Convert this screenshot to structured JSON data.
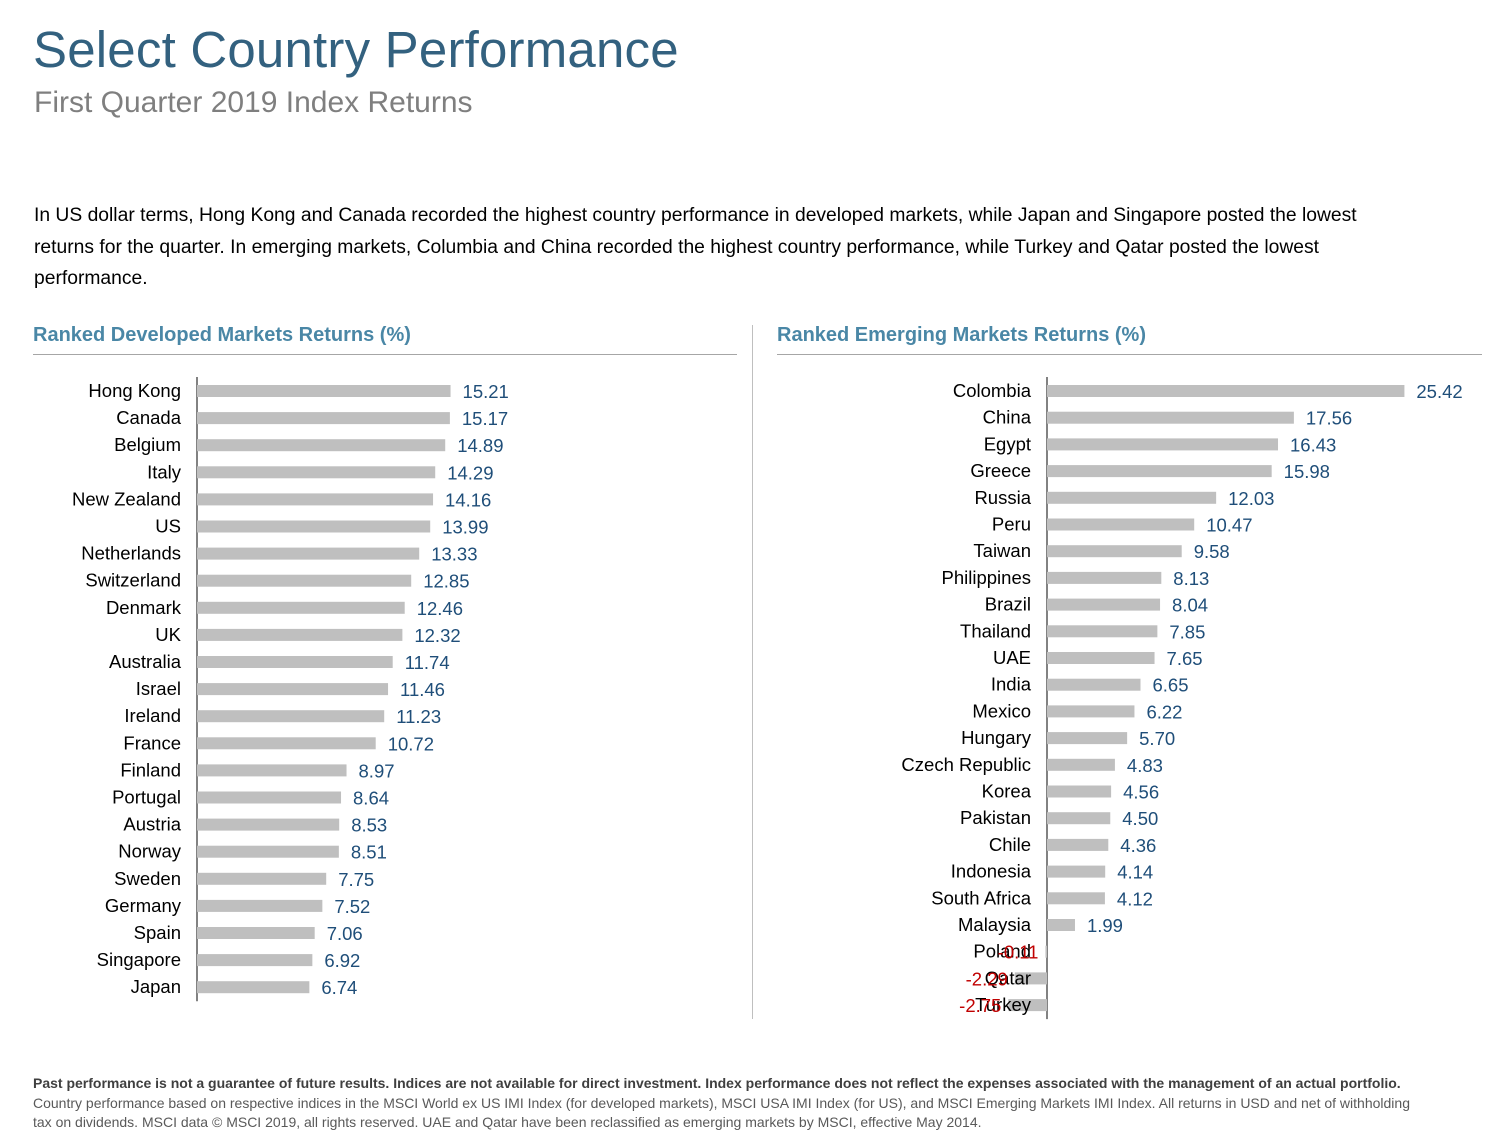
{
  "header": {
    "title": "Select Country Performance",
    "subtitle": "First Quarter 2019 Index Returns"
  },
  "intro": "In US dollar terms, Hong Kong and Canada recorded the highest country performance in developed markets, while Japan and Singapore posted the lowest returns for the quarter. In emerging markets, Columbia and China recorded the highest country performance, while Turkey and Qatar posted the lowest performance.",
  "colors": {
    "bar": "#bfbfbf",
    "positive_label": "#1f4e79",
    "negative_label": "#c00000",
    "title": "#33617f",
    "panel_title": "#4a87a6"
  },
  "chart_data": [
    {
      "type": "bar",
      "orientation": "horizontal",
      "title": "Ranked Developed Markets Returns (%)",
      "categories": [
        "Hong Kong",
        "Canada",
        "Belgium",
        "Italy",
        "New Zealand",
        "US",
        "Netherlands",
        "Switzerland",
        "Denmark",
        "UK",
        "Australia",
        "Israel",
        "Ireland",
        "France",
        "Finland",
        "Portugal",
        "Austria",
        "Norway",
        "Sweden",
        "Germany",
        "Spain",
        "Singapore",
        "Japan"
      ],
      "values": [
        15.21,
        15.17,
        14.89,
        14.29,
        14.16,
        13.99,
        13.33,
        12.85,
        12.46,
        12.32,
        11.74,
        11.46,
        11.23,
        10.72,
        8.97,
        8.64,
        8.53,
        8.51,
        7.75,
        7.52,
        7.06,
        6.92,
        6.74
      ],
      "xlim": [
        0,
        25.42
      ],
      "grid": false,
      "legend": "none"
    },
    {
      "type": "bar",
      "orientation": "horizontal",
      "title": "Ranked Emerging Markets Returns (%)",
      "categories": [
        "Colombia",
        "China",
        "Egypt",
        "Greece",
        "Russia",
        "Peru",
        "Taiwan",
        "Philippines",
        "Brazil",
        "Thailand",
        "UAE",
        "India",
        "Mexico",
        "Hungary",
        "Czech Republic",
        "Korea",
        "Pakistan",
        "Chile",
        "Indonesia",
        "South Africa",
        "Malaysia",
        "Poland",
        "Qatar",
        "Turkey"
      ],
      "values": [
        25.42,
        17.56,
        16.43,
        15.98,
        12.03,
        10.47,
        9.58,
        8.13,
        8.04,
        7.85,
        7.65,
        6.65,
        6.22,
        5.7,
        4.83,
        4.56,
        4.5,
        4.36,
        4.14,
        4.12,
        1.99,
        -0.11,
        -2.29,
        -2.75
      ],
      "xlim": [
        -2.75,
        25.42
      ],
      "grid": false,
      "legend": "none"
    }
  ],
  "footnote": {
    "bold": "Past performance is not a guarantee of future results. Indices are not available for direct investment. Index performance does not reflect the expenses associated with the management of an actual portfolio.",
    "line1": "Country performance based on respective indices in the MSCI World ex US IMI Index (for developed markets), MSCI USA IMI Index (for US), and MSCI Emerging Markets IMI Index. All returns in USD and net of withholding",
    "line2": "tax on dividends. MSCI data © MSCI 2019, all rights reserved. UAE and Qatar have been reclassified as emerging markets by MSCI, effective May 2014."
  }
}
